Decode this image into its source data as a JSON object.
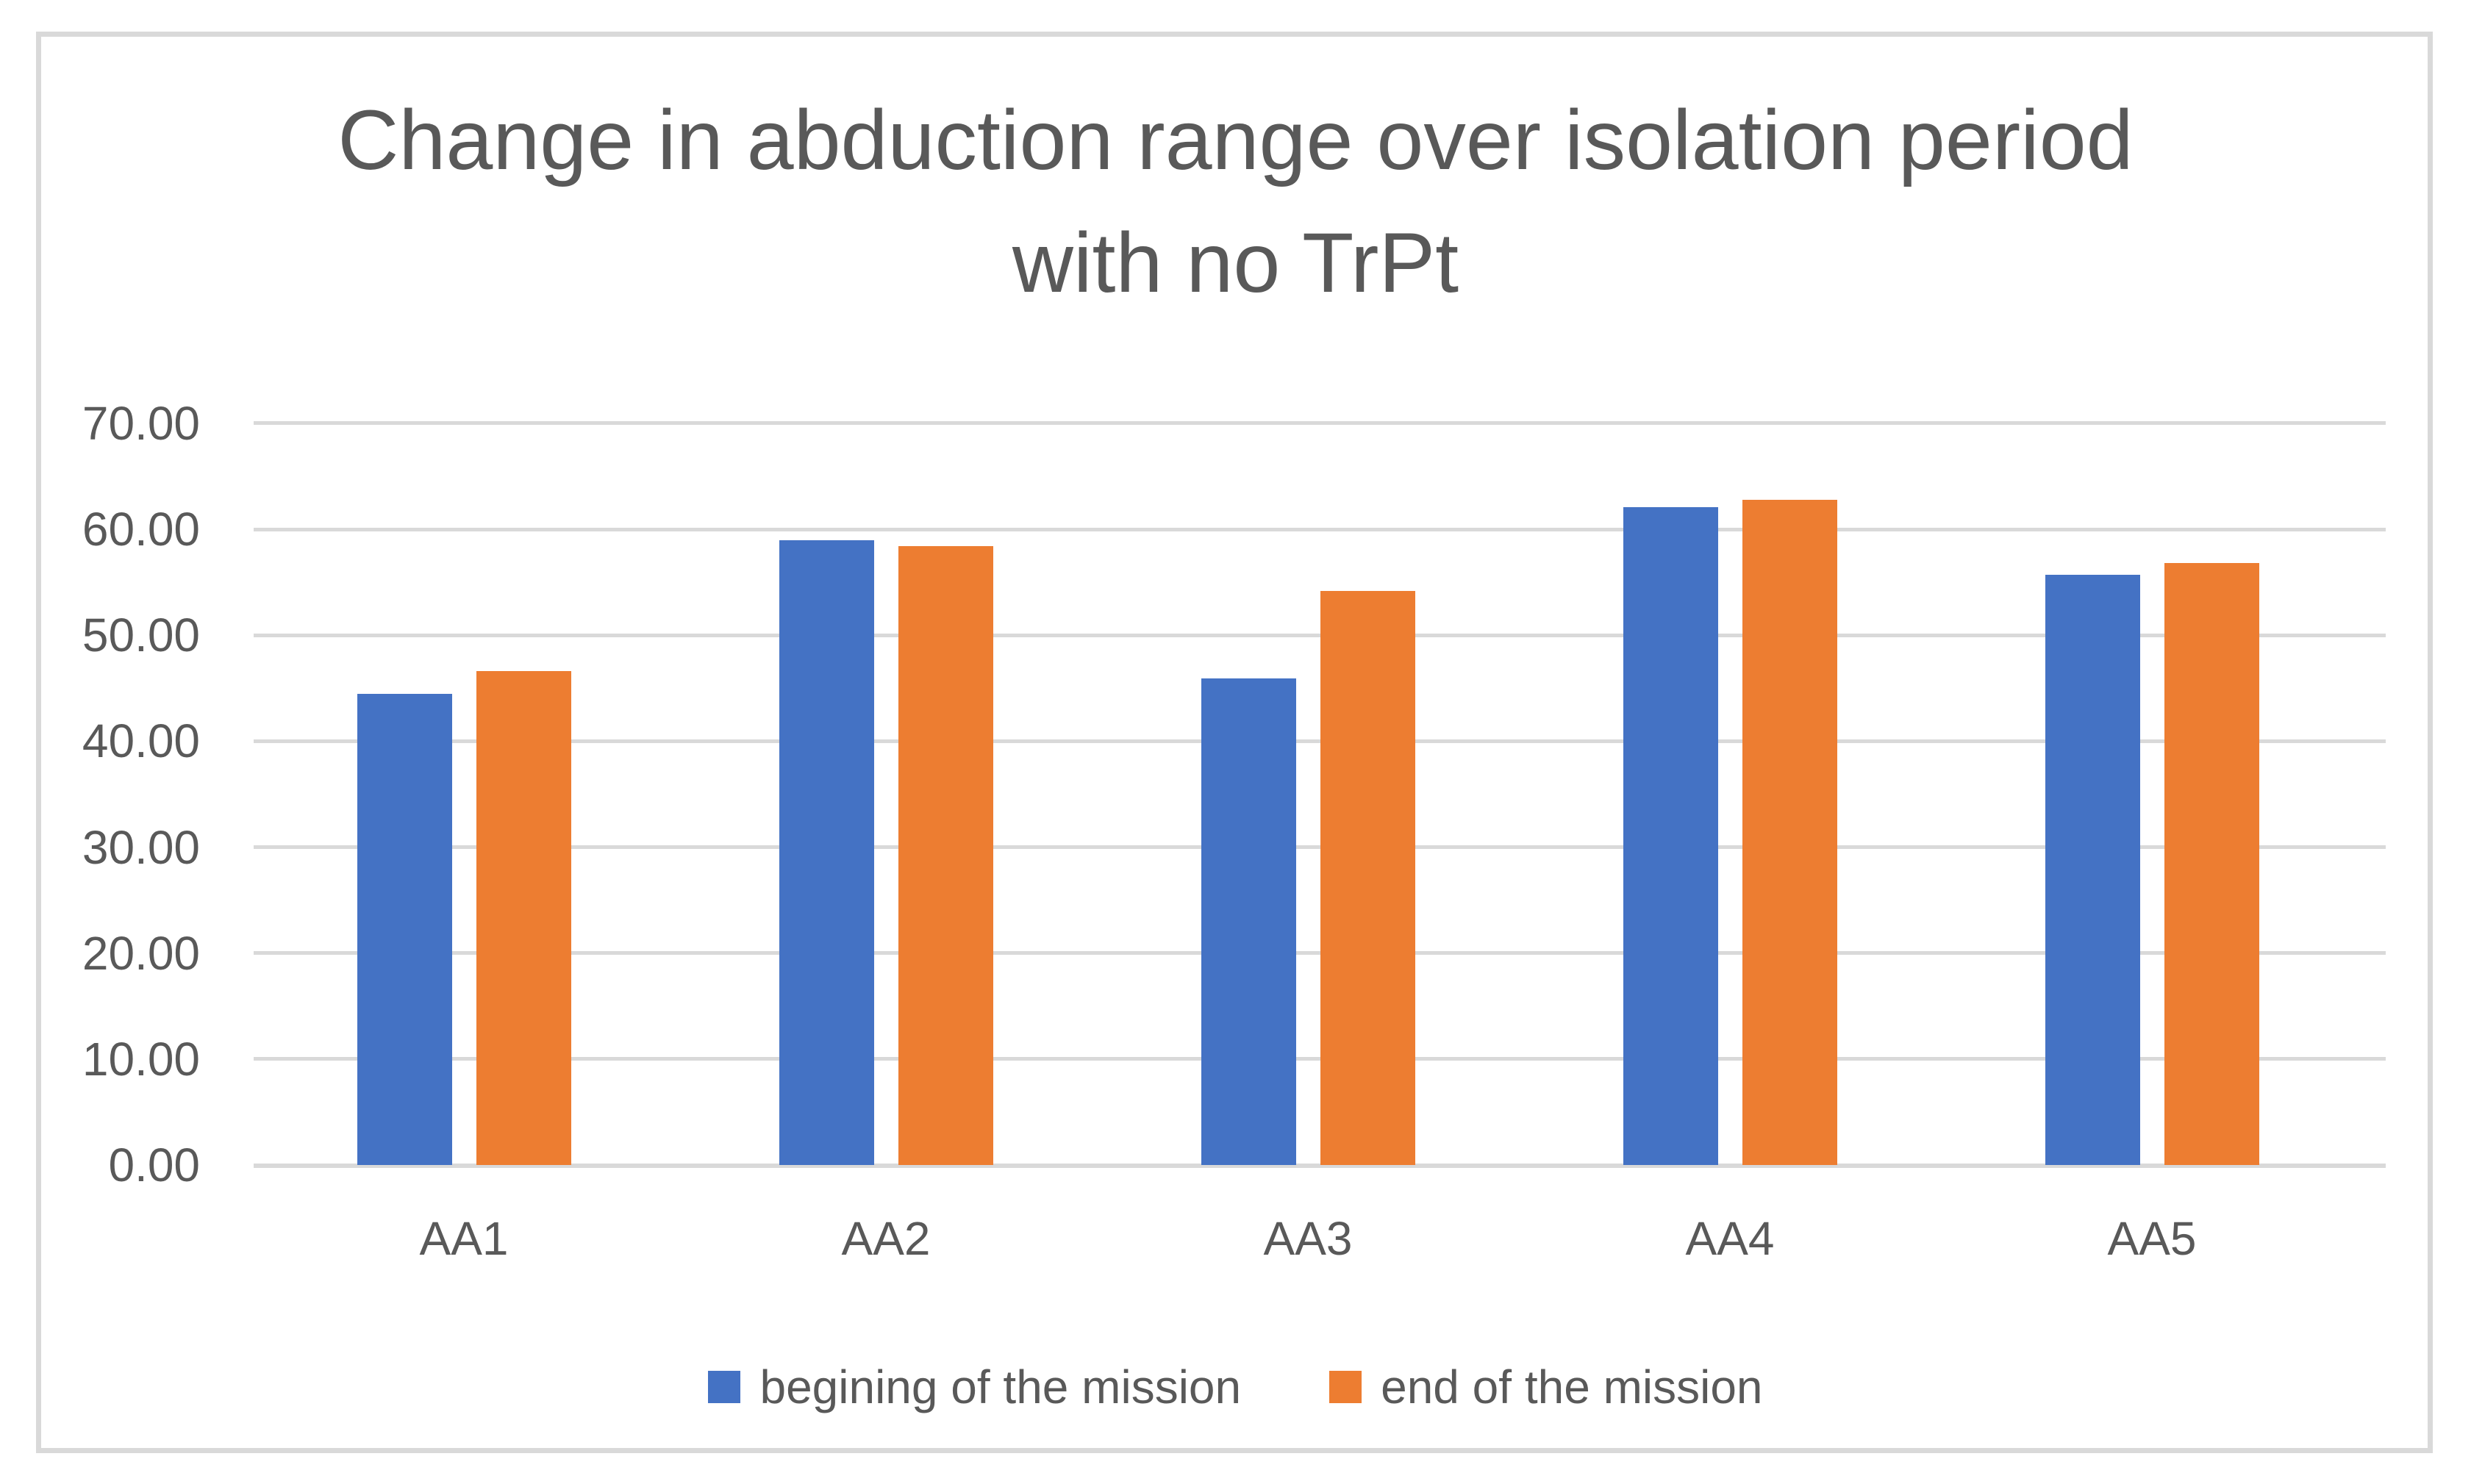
{
  "chart_data": {
    "type": "bar",
    "title": "Change in abduction range over isolation period with no TrPt",
    "categories": [
      "AA1",
      "AA2",
      "AA3",
      "AA4",
      "AA5"
    ],
    "series": [
      {
        "name": "begining of the mission",
        "color": "#4472C4",
        "values": [
          44.5,
          59.0,
          45.9,
          62.1,
          55.7
        ]
      },
      {
        "name": "end of the mission",
        "color": "#ED7D31",
        "values": [
          46.6,
          58.4,
          54.2,
          62.8,
          56.8
        ]
      }
    ],
    "xlabel": "",
    "ylabel": "",
    "ylim": [
      0,
      70
    ],
    "ytick_step": 10,
    "ytick_labels": [
      "0.00",
      "10.00",
      "20.00",
      "30.00",
      "40.00",
      "50.00",
      "60.00",
      "70.00"
    ],
    "grid": true,
    "legend_position": "bottom"
  },
  "colors": {
    "text": "#595959",
    "gridline": "#D9D9D9",
    "frame_border": "#D9D9D9",
    "background": "#FFFFFF"
  }
}
